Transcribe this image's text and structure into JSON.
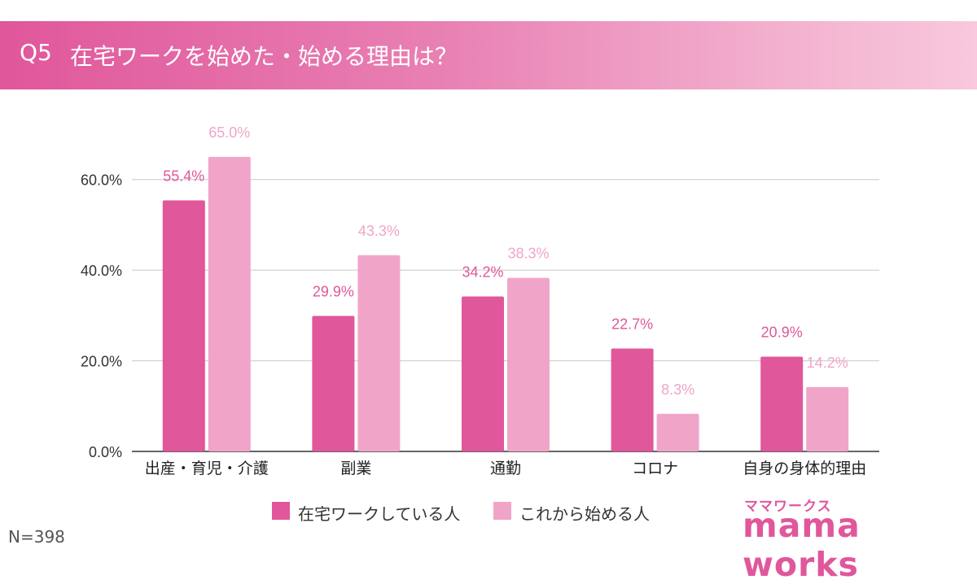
{
  "header": {
    "question_number": "Q5",
    "question_text": "在宅ワークを始めた・始める理由は？",
    "color_start": "#e0579b",
    "color_end": "#f8c8dc"
  },
  "chart_data": {
    "type": "bar",
    "categories": [
      "出産・育児・介護",
      "副業",
      "通勤",
      "コロナ",
      "自身の身体的理由"
    ],
    "series": [
      {
        "name": "在宅ワークしている人",
        "values": [
          55.4,
          29.9,
          34.2,
          22.7,
          20.9
        ],
        "labels": [
          "55.4%",
          "29.9%",
          "34.2%",
          "22.7%",
          "20.9%"
        ],
        "color": "#e0579b"
      },
      {
        "name": "これから始める人",
        "values": [
          65.0,
          43.3,
          38.3,
          8.3,
          14.2
        ],
        "labels": [
          "65.0%",
          "43.3%",
          "38.3%",
          "8.3%",
          "14.2%"
        ],
        "color": "#f0a5c8"
      }
    ],
    "yticks": [
      0,
      20,
      40,
      60
    ],
    "ytick_labels": [
      "0.0%",
      "20.0%",
      "40.0%",
      "60.0%"
    ],
    "ylim": [
      0,
      70
    ],
    "grid": true,
    "legend_placement": "bottom"
  },
  "footer": {
    "n_count": "N=398",
    "logo_sub": "ママワークス",
    "logo_main": "mama works"
  }
}
